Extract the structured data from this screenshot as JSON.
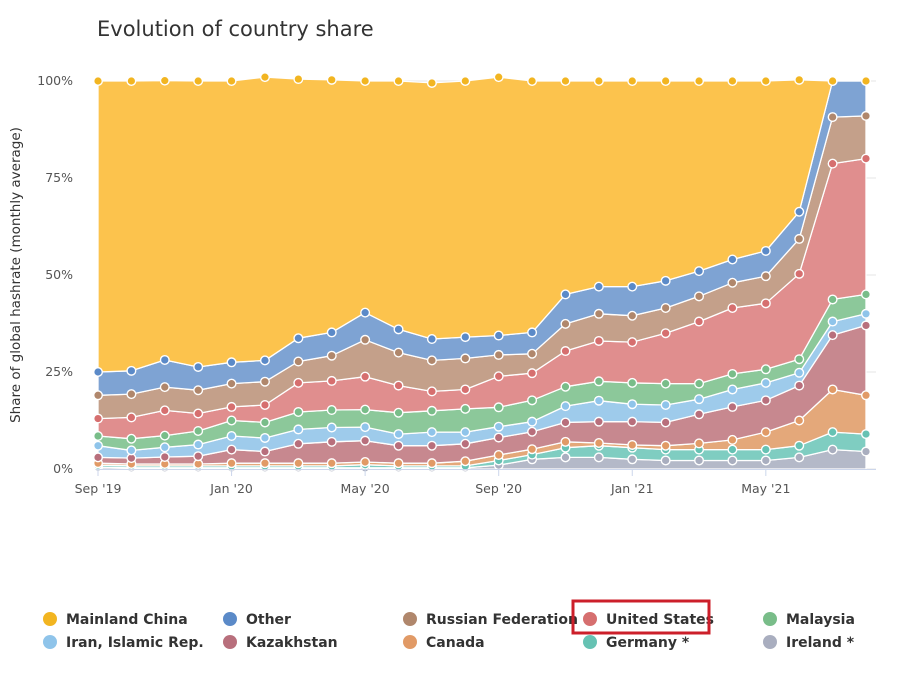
{
  "chart_data": {
    "type": "area",
    "stacked": true,
    "percent": true,
    "title": "Evolution of country share",
    "xlabel": "",
    "ylabel": "Share of global hashrate (monthly average)",
    "ylim": [
      0,
      100
    ],
    "yticks": [
      "0%",
      "25%",
      "50%",
      "75%",
      "100%"
    ],
    "x": [
      "Sep '19",
      "Oct '19",
      "Nov '19",
      "Dec '19",
      "Jan '20",
      "Feb '20",
      "Mar '20",
      "Apr '20",
      "May '20",
      "Jun '20",
      "Jul '20",
      "Aug '20",
      "Sep '20",
      "Oct '20",
      "Nov '20",
      "Dec '20",
      "Jan '21",
      "Feb '21",
      "Mar '21",
      "Apr '21",
      "May '21",
      "Jun '21",
      "Jul '21",
      "Aug '21"
    ],
    "xtick_labels": [
      {
        "index": 0,
        "label": "Sep '19"
      },
      {
        "index": 4,
        "label": "Jan '20"
      },
      {
        "index": 8,
        "label": "May '20"
      },
      {
        "index": 12,
        "label": "Sep '20"
      },
      {
        "index": 16,
        "label": "Jan '21"
      },
      {
        "index": 20,
        "label": "May '21"
      }
    ],
    "series": [
      {
        "name": "Ireland *",
        "color": "#b4b9c8",
        "values": [
          0.5,
          0.3,
          0.3,
          0.3,
          0.3,
          0.3,
          0.3,
          0.3,
          0.3,
          0.3,
          0.3,
          0.3,
          1.0,
          2.5,
          3.0,
          3.0,
          2.5,
          2.2,
          2.2,
          2.2,
          2.2,
          3.0,
          5.0,
          4.5
        ]
      },
      {
        "name": "Germany *",
        "color": "#7fcdc1",
        "values": [
          0.5,
          0.5,
          0.5,
          0.5,
          0.5,
          0.5,
          0.5,
          0.5,
          0.8,
          0.5,
          0.5,
          0.5,
          1.2,
          1.2,
          2.5,
          3.0,
          3.0,
          2.8,
          2.8,
          2.8,
          2.8,
          3.0,
          4.5,
          4.5
        ]
      },
      {
        "name": "Canada",
        "color": "#e4a87a",
        "values": [
          0.5,
          0.5,
          0.5,
          0.5,
          0.7,
          0.7,
          0.7,
          0.7,
          0.7,
          0.7,
          0.7,
          1.2,
          1.4,
          1.4,
          1.5,
          0.7,
          0.7,
          1.0,
          1.6,
          2.5,
          4.5,
          6.5,
          11.0,
          10.0
        ]
      },
      {
        "name": "Kazakhstan",
        "color": "#c7888f",
        "values": [
          1.5,
          1.5,
          1.8,
          2.0,
          3.5,
          3.0,
          5.0,
          5.5,
          5.5,
          4.5,
          4.5,
          4.5,
          4.5,
          4.5,
          5.0,
          5.5,
          6.0,
          6.0,
          7.5,
          8.5,
          8.2,
          9.0,
          14.0,
          18.0
        ]
      },
      {
        "name": "Iran, Islamic Rep.",
        "color": "#9ecbeb",
        "values": [
          3.0,
          2.0,
          2.5,
          3.0,
          3.5,
          3.5,
          3.7,
          3.7,
          3.5,
          3.0,
          3.5,
          3.0,
          2.8,
          2.6,
          4.2,
          5.4,
          4.5,
          4.5,
          3.9,
          4.5,
          4.5,
          3.3,
          3.5,
          3.0
        ]
      },
      {
        "name": "Malaysia",
        "color": "#8cc89a",
        "values": [
          2.5,
          3.0,
          3.0,
          3.5,
          4.0,
          4.0,
          4.5,
          4.5,
          4.5,
          5.5,
          5.5,
          6.0,
          5.0,
          5.5,
          5.0,
          5.0,
          5.5,
          5.5,
          4.0,
          4.0,
          3.5,
          3.5,
          5.7,
          5.0
        ]
      },
      {
        "name": "United States",
        "color": "#e08e8e",
        "values": [
          4.5,
          5.5,
          6.5,
          4.5,
          3.5,
          4.5,
          7.5,
          7.5,
          8.5,
          7.0,
          5.0,
          5.0,
          8.0,
          7.0,
          9.2,
          10.4,
          10.5,
          13.0,
          16.0,
          17.0,
          17.0,
          22.0,
          35.0,
          35.0
        ]
      },
      {
        "name": "Russian Federation",
        "color": "#c4a08a",
        "values": [
          6.0,
          6.0,
          6.0,
          6.0,
          6.0,
          6.0,
          5.5,
          6.5,
          9.5,
          8.5,
          8.0,
          8.0,
          5.5,
          5.0,
          7.0,
          7.0,
          6.8,
          6.5,
          6.5,
          6.5,
          7.0,
          9.0,
          12.0,
          11.0
        ]
      },
      {
        "name": "Other",
        "color": "#7ea3d3",
        "values": [
          6.0,
          6.0,
          7.0,
          6.0,
          5.5,
          5.5,
          6.0,
          6.0,
          7.0,
          6.0,
          5.5,
          5.5,
          5.0,
          5.5,
          7.6,
          7.0,
          7.5,
          7.0,
          6.5,
          6.0,
          6.5,
          7.0,
          9.3,
          9.0
        ]
      },
      {
        "name": "Mainland China",
        "color": "#fcc34d",
        "values": [
          75.0,
          74.7,
          72.0,
          73.7,
          72.5,
          73.0,
          66.8,
          65.1,
          59.7,
          64.0,
          66.0,
          66.0,
          66.6,
          64.8,
          55.0,
          53.0,
          53.0,
          51.5,
          49.0,
          46.0,
          43.8,
          34.0,
          0.0,
          0.0
        ]
      }
    ],
    "legend": [
      {
        "name": "Mainland China",
        "color": "#f2b521"
      },
      {
        "name": "Other",
        "color": "#5b8ac8"
      },
      {
        "name": "Russian Federation",
        "color": "#b0876c"
      },
      {
        "name": "United States",
        "color": "#d66f6f",
        "highlighted": true
      },
      {
        "name": "Malaysia",
        "color": "#79bd89"
      },
      {
        "name": "Iran, Islamic Rep.",
        "color": "#8fc4ea"
      },
      {
        "name": "Kazakhstan",
        "color": "#b86f7c"
      },
      {
        "name": "Canada",
        "color": "#e19a66"
      },
      {
        "name": "Germany *",
        "color": "#66c2b3"
      },
      {
        "name": "Ireland *",
        "color": "#a9aebf"
      }
    ],
    "highlight_color": "#cc1f2a",
    "legend_position": "bottom",
    "grid": true
  }
}
